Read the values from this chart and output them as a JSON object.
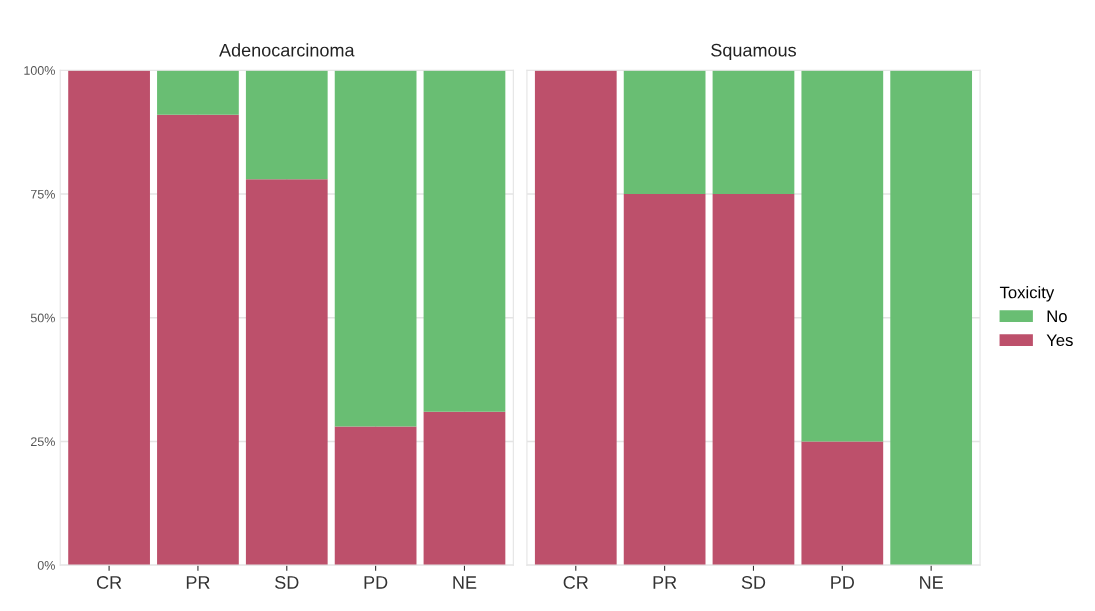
{
  "chart_data": [
    {
      "type": "bar",
      "title": "Adenocarcinoma",
      "categories": [
        "CR",
        "PR",
        "SD",
        "PD",
        "NE"
      ],
      "stacked": true,
      "series": [
        {
          "color": "#bd506b",
          "values": [
            100,
            91,
            78,
            28,
            31
          ]
        },
        {
          "color": "#69be73",
          "values": [
            0,
            9,
            22,
            72,
            69
          ]
        }
      ],
      "ylim": [
        0,
        100
      ],
      "yticks": [
        {
          "value": 0,
          "label": "0%"
        },
        {
          "value": 25,
          "label": "25%"
        },
        {
          "value": 50,
          "label": "50%"
        },
        {
          "value": 75,
          "label": "75%"
        },
        {
          "value": 100,
          "label": "100%"
        }
      ],
      "grid": true
    },
    {
      "type": "bar",
      "title": "Squamous",
      "categories": [
        "CR",
        "PR",
        "SD",
        "PD",
        "NE"
      ],
      "stacked": true,
      "series": [
        {
          "name": "Yes",
          "color": "#bd506b",
          "values": [
            100,
            75,
            75,
            25,
            0
          ]
        },
        {
          "name": "No",
          "color": "#69be73",
          "values": [
            0,
            25,
            25,
            75,
            100
          ]
        }
      ],
      "ylim": [
        0,
        100
      ],
      "yticks": [
        0,
        25,
        50,
        75,
        100
      ],
      "tick_labels": "x",
      "grid": true,
      "legend": "right",
      "legend_title": "Toxicity"
    }
  ]
}
